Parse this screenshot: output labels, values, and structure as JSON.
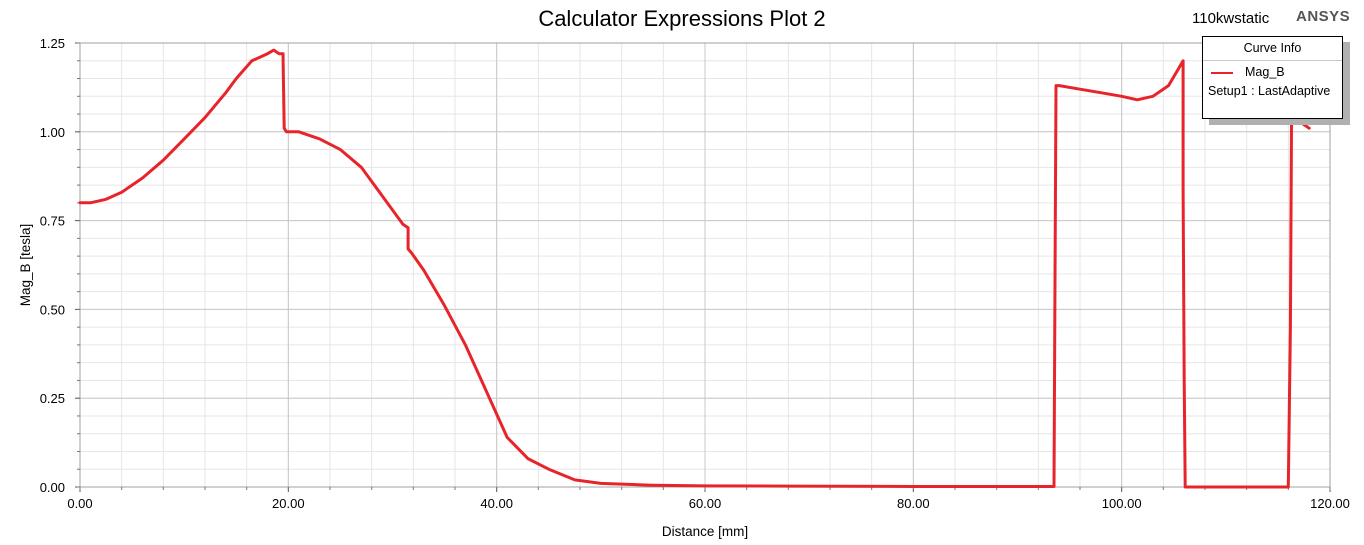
{
  "header": {
    "title": "Calculator Expressions Plot 2",
    "project": "110kwstatic",
    "brand": "ANSYS"
  },
  "legend": {
    "header": "Curve Info",
    "series_name": "Mag_B",
    "setup": "Setup1 : LastAdaptive"
  },
  "colors": {
    "series": "#e8242b",
    "grid": "#c8c8c8",
    "grid_minor": "#e6e6e6"
  },
  "chart_data": {
    "type": "line",
    "title": "Calculator Expressions Plot 2",
    "xlabel": "Distance [mm]",
    "ylabel": "Mag_B [tesla]",
    "xlim": [
      0,
      120
    ],
    "ylim": [
      0,
      1.25
    ],
    "xticks": [
      "0.00",
      "20.00",
      "40.00",
      "60.00",
      "80.00",
      "100.00",
      "120.00"
    ],
    "yticks": [
      "0.00",
      "0.25",
      "0.50",
      "0.75",
      "1.00",
      "1.25"
    ],
    "grid": true,
    "legend_position": "top-right",
    "series": [
      {
        "name": "Mag_B",
        "color": "#e8242b",
        "x": [
          0,
          1,
          2.5,
          4,
          6,
          8,
          10,
          12,
          14,
          15,
          16.5,
          18,
          18.6,
          19.1,
          19.5,
          19.5,
          19.6,
          19.8,
          21,
          23,
          25,
          27,
          29,
          31,
          31.5,
          31.5,
          31.8,
          33,
          35,
          37,
          39,
          41,
          43,
          45,
          47.5,
          50,
          55,
          60,
          68,
          80,
          93.5,
          93.6,
          93.7,
          94,
          96,
          98,
          100,
          101.5,
          103,
          104.5,
          105.5,
          105.9,
          105.9,
          106,
          106.1,
          110,
          116,
          116.2,
          116.3,
          116.4,
          117,
          118
        ],
        "y": [
          0.8,
          0.8,
          0.81,
          0.83,
          0.87,
          0.92,
          0.98,
          1.04,
          1.11,
          1.15,
          1.2,
          1.22,
          1.23,
          1.22,
          1.22,
          1.2,
          1.01,
          1.0,
          1.0,
          0.98,
          0.95,
          0.9,
          0.82,
          0.74,
          0.73,
          0.67,
          0.66,
          0.61,
          0.51,
          0.4,
          0.27,
          0.14,
          0.08,
          0.05,
          0.02,
          0.01,
          0.005,
          0.003,
          0.0025,
          0.0015,
          0.0015,
          0.58,
          1.13,
          1.13,
          1.12,
          1.11,
          1.1,
          1.09,
          1.1,
          1.13,
          1.18,
          1.2,
          0.84,
          0.3,
          0,
          0,
          0,
          0.45,
          1.02,
          1.04,
          1.03,
          1.01
        ]
      }
    ]
  }
}
